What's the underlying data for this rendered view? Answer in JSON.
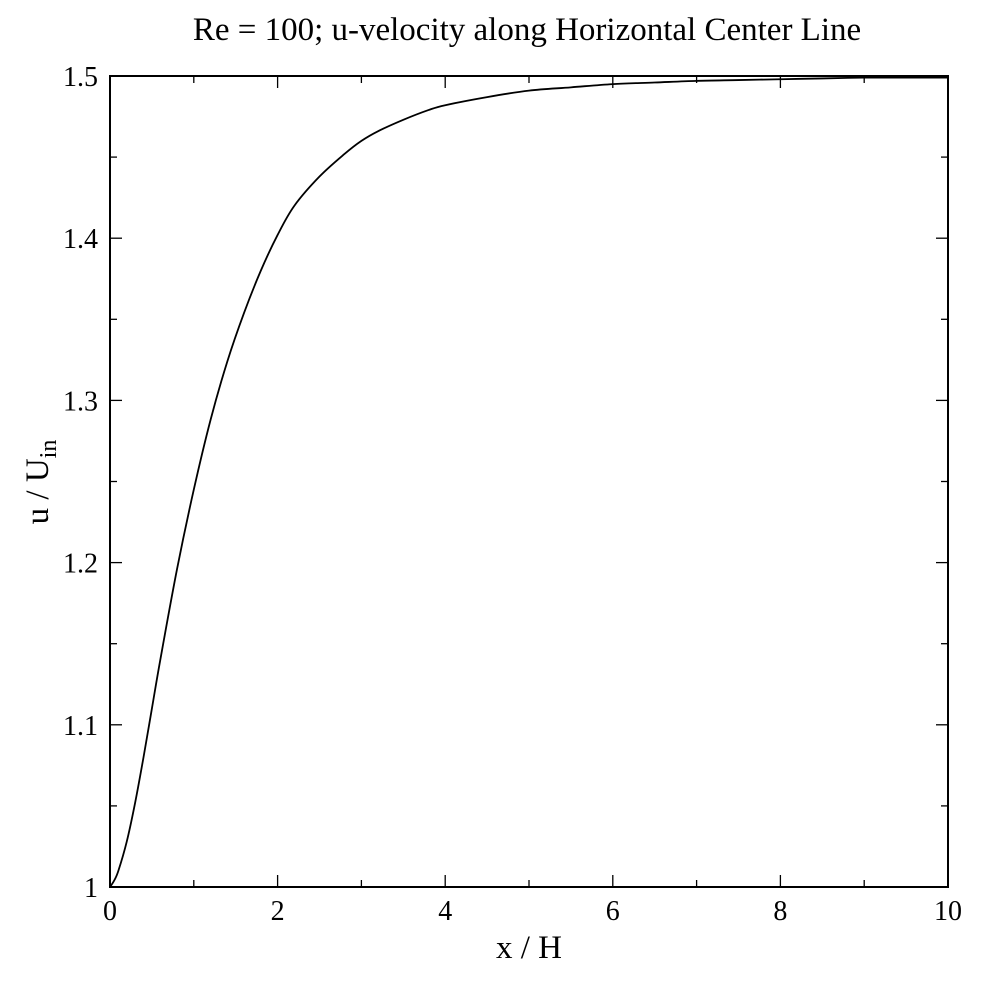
{
  "chart_data": {
    "type": "line",
    "title": "Re = 100; u-velocity along Horizontal Center Line",
    "xlabel": "x / H",
    "ylabel_main": "u / U",
    "ylabel_sub": "in",
    "xlim": [
      0,
      10
    ],
    "ylim": [
      1,
      1.5
    ],
    "x_major_ticks": [
      0,
      2,
      4,
      6,
      8,
      10
    ],
    "x_tick_labels": [
      "0",
      "2",
      "4",
      "6",
      "8",
      "10"
    ],
    "x_minor_step": 1,
    "y_major_ticks": [
      1,
      1.1,
      1.2,
      1.3,
      1.4,
      1.5
    ],
    "y_tick_labels": [
      "1",
      "1.1",
      "1.2",
      "1.3",
      "1.4",
      "1.5"
    ],
    "y_minor_step": 0.05,
    "grid": false,
    "series": [
      {
        "color": "#000000",
        "x": [
          0,
          0.05,
          0.1,
          0.2,
          0.3,
          0.4,
          0.5,
          0.6,
          0.8,
          1.0,
          1.2,
          1.4,
          1.6,
          1.8,
          2.0,
          2.2,
          2.5,
          2.8,
          3.0,
          3.2,
          3.5,
          3.8,
          4.0,
          4.5,
          5.0,
          5.5,
          6.0,
          6.5,
          7.0,
          7.5,
          8.0,
          8.5,
          9.0,
          9.5,
          10.0
        ],
        "y": [
          1.0,
          1.004,
          1.01,
          1.028,
          1.052,
          1.08,
          1.11,
          1.14,
          1.196,
          1.245,
          1.288,
          1.324,
          1.354,
          1.38,
          1.402,
          1.42,
          1.438,
          1.452,
          1.46,
          1.466,
          1.473,
          1.479,
          1.482,
          1.487,
          1.491,
          1.493,
          1.495,
          1.496,
          1.497,
          1.4975,
          1.498,
          1.4985,
          1.499,
          1.499,
          1.499
        ]
      }
    ]
  }
}
